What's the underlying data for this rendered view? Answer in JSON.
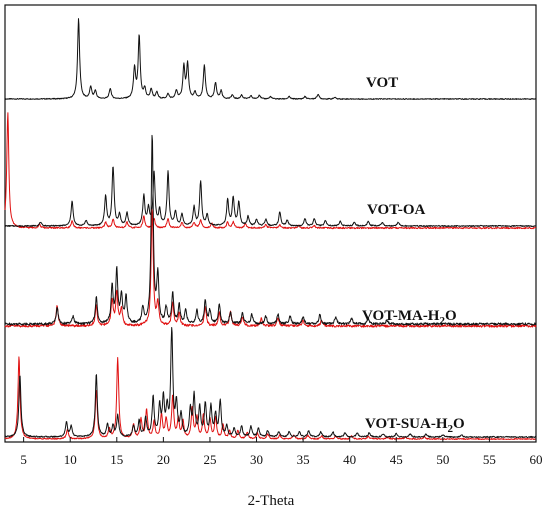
{
  "chart_data": {
    "type": "line",
    "title": "",
    "xlabel": "2-Theta",
    "ylabel": "",
    "xlim": [
      3,
      60
    ],
    "xticks": [
      "5",
      "10",
      "15",
      "20",
      "25",
      "30",
      "35",
      "40",
      "45",
      "50",
      "55",
      "60"
    ],
    "xtick_values": [
      5,
      10,
      15,
      20,
      25,
      30,
      35,
      40,
      45,
      50,
      55,
      60
    ],
    "colors": {
      "experimental": "#111111",
      "simulated": "#e01010"
    },
    "panels": [
      {
        "label": "VOT",
        "series": [
          {
            "peaks": [
              [
                10.9,
                1.0
              ],
              [
                12.2,
                0.15
              ],
              [
                12.7,
                0.1
              ],
              [
                14.3,
                0.13
              ],
              [
                16.9,
                0.38
              ],
              [
                17.4,
                0.78
              ],
              [
                18.0,
                0.12
              ],
              [
                18.7,
                0.12
              ],
              [
                19.3,
                0.08
              ],
              [
                20.5,
                0.06
              ],
              [
                21.4,
                0.1
              ],
              [
                22.2,
                0.4
              ],
              [
                22.6,
                0.43
              ],
              [
                23.4,
                0.08
              ],
              [
                24.4,
                0.42
              ],
              [
                25.6,
                0.2
              ],
              [
                26.2,
                0.1
              ],
              [
                27.4,
                0.05
              ],
              [
                28.4,
                0.05
              ],
              [
                29.4,
                0.04
              ],
              [
                30.3,
                0.05
              ],
              [
                31.5,
                0.03
              ],
              [
                33.5,
                0.03
              ],
              [
                35.2,
                0.03
              ],
              [
                36.6,
                0.06
              ],
              [
                38.4,
                0.02
              ]
            ]
          }
        ]
      },
      {
        "label": "VOT-OA",
        "series": [
          {
            "peaks": [
              [
                6.8,
                0.04
              ],
              [
                10.2,
                0.27
              ],
              [
                11.7,
                0.06
              ],
              [
                13.8,
                0.32
              ],
              [
                14.6,
                0.63
              ],
              [
                15.3,
                0.12
              ],
              [
                16.1,
                0.14
              ],
              [
                17.9,
                0.32
              ],
              [
                18.4,
                0.18
              ],
              [
                19.0,
                0.57
              ],
              [
                19.6,
                0.16
              ],
              [
                20.5,
                0.58
              ],
              [
                21.3,
                0.15
              ],
              [
                22.0,
                0.12
              ],
              [
                23.3,
                0.2
              ],
              [
                24.0,
                0.47
              ],
              [
                24.7,
                0.12
              ],
              [
                26.9,
                0.28
              ],
              [
                27.5,
                0.3
              ],
              [
                28.1,
                0.25
              ],
              [
                29.1,
                0.1
              ],
              [
                30.0,
                0.07
              ],
              [
                31.0,
                0.07
              ],
              [
                32.5,
                0.15
              ],
              [
                33.3,
                0.06
              ],
              [
                35.2,
                0.08
              ],
              [
                36.2,
                0.08
              ],
              [
                37.4,
                0.06
              ],
              [
                39.0,
                0.05
              ],
              [
                40.5,
                0.04
              ],
              [
                42.0,
                0.05
              ],
              [
                43.5,
                0.04
              ],
              [
                45.2,
                0.04
              ]
            ]
          },
          {
            "peaks": [
              [
                3.3,
                1.0
              ],
              [
                6.7,
                0.03
              ],
              [
                10.2,
                0.06
              ],
              [
                13.8,
                0.05
              ],
              [
                14.6,
                0.08
              ],
              [
                16.1,
                0.05
              ],
              [
                17.9,
                0.1
              ],
              [
                19.0,
                0.08
              ],
              [
                20.5,
                0.08
              ],
              [
                22.0,
                0.05
              ],
              [
                23.3,
                0.05
              ],
              [
                24.0,
                0.07
              ],
              [
                25.2,
                0.04
              ],
              [
                26.9,
                0.05
              ],
              [
                27.5,
                0.05
              ],
              [
                28.8,
                0.04
              ],
              [
                31.0,
                0.03
              ],
              [
                32.5,
                0.03
              ],
              [
                34.5,
                0.02
              ],
              [
                36.2,
                0.02
              ]
            ]
          }
        ]
      },
      {
        "label": "VOT-MA-H2O",
        "series": [
          {
            "peaks": [
              [
                8.6,
                0.09
              ],
              [
                10.3,
                0.04
              ],
              [
                12.8,
                0.14
              ],
              [
                14.5,
                0.2
              ],
              [
                15.0,
                0.28
              ],
              [
                15.5,
                0.15
              ],
              [
                16.0,
                0.14
              ],
              [
                17.8,
                0.08
              ],
              [
                18.8,
                1.0
              ],
              [
                19.4,
                0.25
              ],
              [
                20.3,
                0.08
              ],
              [
                21.0,
                0.16
              ],
              [
                21.7,
                0.1
              ],
              [
                22.4,
                0.07
              ],
              [
                23.6,
                0.07
              ],
              [
                24.5,
                0.12
              ],
              [
                25.0,
                0.07
              ],
              [
                26.0,
                0.1
              ],
              [
                27.2,
                0.06
              ],
              [
                28.5,
                0.06
              ],
              [
                29.5,
                0.05
              ],
              [
                31.0,
                0.04
              ],
              [
                32.3,
                0.05
              ],
              [
                33.6,
                0.04
              ],
              [
                35.0,
                0.04
              ],
              [
                36.8,
                0.05
              ],
              [
                38.5,
                0.04
              ],
              [
                40.2,
                0.03
              ],
              [
                42.0,
                0.03
              ],
              [
                44.0,
                0.02
              ]
            ]
          },
          {
            "peaks": [
              [
                8.6,
                0.11
              ],
              [
                12.8,
                0.11
              ],
              [
                14.5,
                0.14
              ],
              [
                15.0,
                0.18
              ],
              [
                15.5,
                0.09
              ],
              [
                18.8,
                0.62
              ],
              [
                19.4,
                0.12
              ],
              [
                21.0,
                0.12
              ],
              [
                21.7,
                0.07
              ],
              [
                24.5,
                0.1
              ],
              [
                26.0,
                0.07
              ],
              [
                27.2,
                0.08
              ],
              [
                28.5,
                0.05
              ],
              [
                30.5,
                0.04
              ],
              [
                32.3,
                0.04
              ],
              [
                35.0,
                0.03
              ],
              [
                37.0,
                0.03
              ]
            ]
          }
        ]
      },
      {
        "label": "VOT-SUA-H2O",
        "series": [
          {
            "peaks": [
              [
                4.6,
                0.6
              ],
              [
                9.6,
                0.14
              ],
              [
                10.1,
                0.1
              ],
              [
                12.8,
                0.6
              ],
              [
                14.0,
                0.12
              ],
              [
                14.6,
                0.1
              ],
              [
                15.1,
                0.2
              ],
              [
                16.8,
                0.1
              ],
              [
                17.4,
                0.15
              ],
              [
                18.1,
                0.18
              ],
              [
                18.9,
                0.37
              ],
              [
                19.6,
                0.28
              ],
              [
                20.0,
                0.35
              ],
              [
                20.4,
                0.25
              ],
              [
                20.9,
                1.0
              ],
              [
                21.4,
                0.3
              ],
              [
                21.9,
                0.2
              ],
              [
                22.9,
                0.25
              ],
              [
                23.3,
                0.38
              ],
              [
                23.9,
                0.27
              ],
              [
                24.5,
                0.3
              ],
              [
                25.1,
                0.28
              ],
              [
                25.6,
                0.2
              ],
              [
                26.1,
                0.33
              ],
              [
                26.8,
                0.1
              ],
              [
                27.6,
                0.08
              ],
              [
                28.4,
                0.1
              ],
              [
                29.4,
                0.1
              ],
              [
                30.2,
                0.08
              ],
              [
                31.2,
                0.06
              ],
              [
                32.4,
                0.05
              ],
              [
                33.5,
                0.05
              ],
              [
                34.6,
                0.05
              ],
              [
                35.6,
                0.06
              ],
              [
                36.9,
                0.05
              ],
              [
                38.2,
                0.05
              ],
              [
                39.5,
                0.04
              ],
              [
                40.8,
                0.04
              ],
              [
                42.1,
                0.04
              ],
              [
                43.6,
                0.03
              ],
              [
                45.0,
                0.03
              ],
              [
                46.5,
                0.03
              ],
              [
                48.2,
                0.03
              ],
              [
                50.0,
                0.02
              ],
              [
                52.0,
                0.02
              ]
            ]
          },
          {
            "peaks": [
              [
                4.5,
                0.87
              ],
              [
                9.7,
                0.1
              ],
              [
                12.8,
                0.52
              ],
              [
                14.2,
                0.1
              ],
              [
                15.1,
                0.85
              ],
              [
                16.8,
                0.15
              ],
              [
                17.6,
                0.2
              ],
              [
                18.2,
                0.3
              ],
              [
                19.0,
                0.18
              ],
              [
                19.8,
                0.25
              ],
              [
                20.3,
                0.2
              ],
              [
                21.0,
                0.45
              ],
              [
                21.6,
                0.2
              ],
              [
                22.1,
                0.18
              ],
              [
                23.1,
                0.32
              ],
              [
                23.6,
                0.22
              ],
              [
                24.3,
                0.25
              ],
              [
                25.0,
                0.2
              ],
              [
                25.6,
                0.22
              ],
              [
                26.4,
                0.15
              ],
              [
                27.1,
                0.08
              ],
              [
                28.0,
                0.09
              ],
              [
                29.0,
                0.07
              ],
              [
                30.1,
                0.06
              ],
              [
                31.2,
                0.05
              ],
              [
                32.5,
                0.04
              ],
              [
                34.0,
                0.04
              ],
              [
                35.5,
                0.04
              ],
              [
                37.0,
                0.03
              ],
              [
                38.5,
                0.03
              ],
              [
                40.2,
                0.03
              ],
              [
                42.0,
                0.03
              ],
              [
                44.0,
                0.02
              ],
              [
                46.0,
                0.02
              ],
              [
                48.0,
                0.02
              ]
            ]
          }
        ]
      }
    ]
  }
}
